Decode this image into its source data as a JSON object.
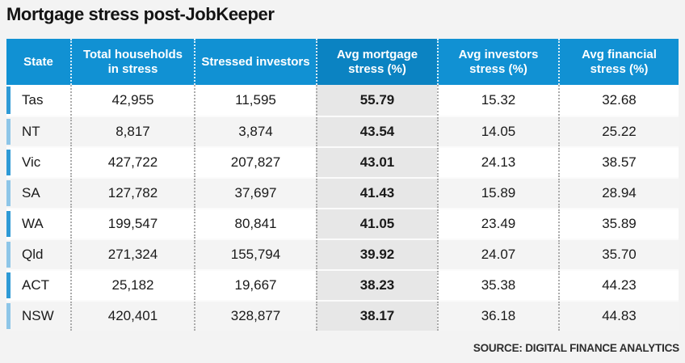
{
  "chart_data": {
    "type": "table",
    "title": "Mortgage stress post-JobKeeper",
    "columns": [
      "State",
      "Total households in stress",
      "Stressed investors",
      "Avg mortgage stress (%)",
      "Avg investors stress (%)",
      "Avg financial stress (%)"
    ],
    "rows": [
      [
        "Tas",
        "42,955",
        "11,595",
        "55.79",
        "15.32",
        "32.68"
      ],
      [
        "NT",
        "8,817",
        "3,874",
        "43.54",
        "14.05",
        "25.22"
      ],
      [
        "Vic",
        "427,722",
        "207,827",
        "43.01",
        "24.13",
        "38.57"
      ],
      [
        "SA",
        "127,782",
        "37,697",
        "41.43",
        "15.89",
        "28.94"
      ],
      [
        "WA",
        "199,547",
        "80,841",
        "41.05",
        "23.49",
        "35.89"
      ],
      [
        "Qld",
        "271,324",
        "155,794",
        "39.92",
        "24.07",
        "35.70"
      ],
      [
        "ACT",
        "25,182",
        "19,667",
        "38.23",
        "35.38",
        "44.23"
      ],
      [
        "NSW",
        "420,401",
        "328,877",
        "38.17",
        "36.18",
        "44.83"
      ]
    ],
    "highlighted_column": "Avg mortgage stress (%)",
    "source": "SOURCE: DIGITAL FINANCE ANALYTICS",
    "legend_position": "none",
    "grid": "dotted-column-separators"
  },
  "colors": {
    "page_bg": "#f3f3f3",
    "header_blue": "#1191d3",
    "header_highlight_blue": "#0b83c2",
    "accent_dark": "#2e9ad6",
    "accent_light": "#8ec6e8",
    "highlight_column_bg": "#e7e7e7",
    "row_bg": "#ffffff",
    "row_alt_bg": "#f4f4f4",
    "text": "#1a1a1a",
    "source_text": "#2e2e2e"
  }
}
